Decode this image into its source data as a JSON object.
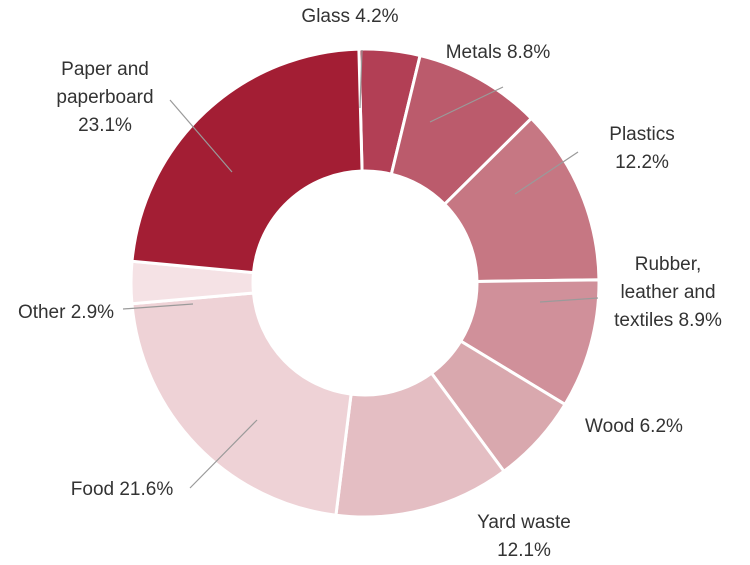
{
  "chart_data": {
    "type": "pie",
    "variant": "donut",
    "title": "",
    "legend": "none",
    "slices": [
      {
        "name": "Glass",
        "value": 4.2,
        "label_lines": [
          "Glass 4.2%"
        ],
        "color": "#b23f55"
      },
      {
        "name": "Metals",
        "value": 8.8,
        "label_lines": [
          "Metals 8.8%"
        ],
        "color": "#bb5b6c"
      },
      {
        "name": "Plastics",
        "value": 12.2,
        "label_lines": [
          "Plastics",
          "12.2%"
        ],
        "color": "#c67783"
      },
      {
        "name": "Rubber, leather and textiles",
        "value": 8.9,
        "label_lines": [
          "Rubber,",
          "leather and",
          "textiles 8.9%"
        ],
        "color": "#d0909a"
      },
      {
        "name": "Wood",
        "value": 6.2,
        "label_lines": [
          "Wood 6.2%"
        ],
        "color": "#d9a8ae"
      },
      {
        "name": "Yard waste",
        "value": 12.1,
        "label_lines": [
          "Yard waste",
          "12.1%"
        ],
        "color": "#e4bec3"
      },
      {
        "name": "Food",
        "value": 21.6,
        "label_lines": [
          "Food 21.6%"
        ],
        "color": "#eed2d6"
      },
      {
        "name": "Other",
        "value": 2.9,
        "label_lines": [
          "Other 2.9%"
        ],
        "color": "#f5e2e5"
      },
      {
        "name": "Paper and paperboard",
        "value": 23.1,
        "label_lines": [
          "Paper and",
          "paperboard",
          "23.1%"
        ],
        "color": "#a31e34"
      }
    ]
  }
}
